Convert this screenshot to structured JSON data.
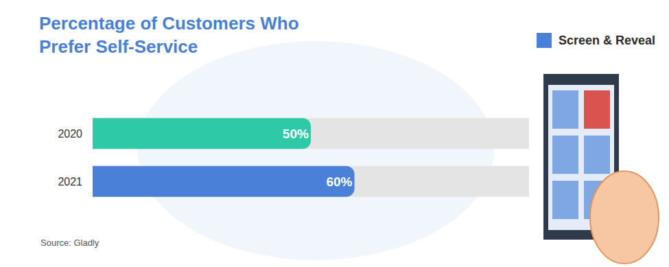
{
  "chart_data": {
    "type": "bar",
    "orientation": "horizontal",
    "title": "Percentage of Customers Who Prefer Self-Service",
    "categories": [
      "2020",
      "2021"
    ],
    "values": [
      50,
      60
    ],
    "value_labels": [
      "50%",
      "60%"
    ],
    "colors": [
      "#2ec9a7",
      "#4b80d8"
    ],
    "xlim": [
      0,
      100
    ],
    "data_labels": true,
    "tick_labels": "y",
    "grid": false,
    "annotations": [
      "Screen & Reveal",
      "Source: Gladly"
    ]
  }
}
